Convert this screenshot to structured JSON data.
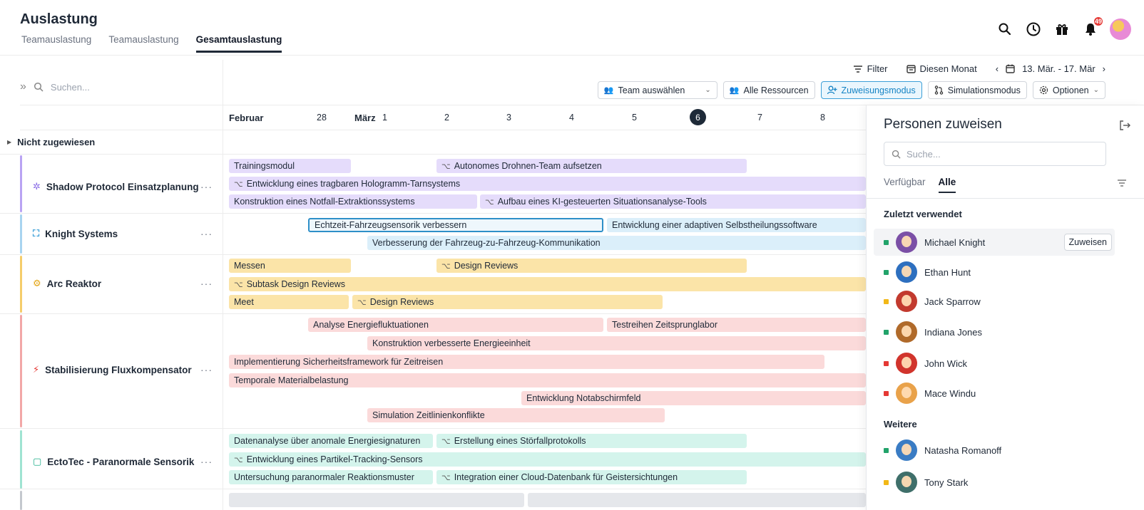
{
  "app": {
    "title": "Auslastung",
    "tabs": [
      {
        "label": "Teamauslastung",
        "active": false
      },
      {
        "label": "Teamauslastung",
        "active": false
      },
      {
        "label": "Gesamtauslastung",
        "active": true
      }
    ],
    "notification_count": "49"
  },
  "toolbar": {
    "filter_label": "Filter",
    "period_label": "Diesen Monat",
    "date_range": "13. Mär. - 17. Mär",
    "team_select": "Team auswählen",
    "resources_label": "Alle Ressourcen",
    "assign_mode_label": "Zuweisungsmodus",
    "simulation_label": "Simulationsmodus",
    "options_label": "Optionen"
  },
  "search": {
    "placeholder": "Suchen..."
  },
  "timeline": {
    "months": [
      "Februar",
      "März"
    ],
    "days": [
      "28",
      "1",
      "2",
      "3",
      "4",
      "5",
      "6",
      "7",
      "8"
    ],
    "today": "6"
  },
  "unassigned_label": "Nicht zugewiesen",
  "projects": [
    {
      "name": "Shadow Protocol Einsatzplanung",
      "color": "#b9a3f3",
      "tasks": [
        "Trainingsmodul",
        "Autonomes Drohnen-Team aufsetzen",
        "Entwicklung eines tragbaren Hologramm-Tarnsystems",
        "Konstruktion eines Notfall-Extraktionssystems",
        "Aufbau eines KI-gesteuerten Situationsanalyse-Tools"
      ]
    },
    {
      "name": "Knight Systems",
      "color": "#a8d4f0",
      "tasks": [
        "Echtzeit-Fahrzeugsensorik verbessern",
        "Entwicklung einer adaptiven Selbstheilungssoftware",
        "Verbesserung der Fahrzeug-zu-Fahrzeug-Kommunikation"
      ]
    },
    {
      "name": "Arc Reaktor",
      "color": "#f5cd6b",
      "tasks": [
        "Messen",
        "Design Reviews",
        "Subtask Design Reviews",
        "Meet",
        "Design Reviews"
      ]
    },
    {
      "name": "Stabilisierung Fluxkompensator",
      "color": "#f2a7a7",
      "tasks": [
        "Analyse Energiefluktuationen",
        "Testreihen Zeitsprunglabor",
        "Konstruktion verbesserte Energieeinheit",
        "Implementierung Sicherheitsframework für Zeitreisen",
        "Temporale Materialbelastung",
        "Entwicklung Notabschirmfeld",
        "Simulation Zeitlinienkonflikte"
      ]
    },
    {
      "name": "EctoTec - Paranormale Sensorik",
      "color": "#9fe3d2",
      "tasks": [
        "Datenanalyse über anomale Energiesignaturen",
        "Erstellung eines Störfallprotokolls",
        "Entwicklung eines Partikel-Tracking-Sensors",
        "Untersuchung paranormaler Reaktionsmuster",
        "Integration einer Cloud-Datenbank für Geistersichtungen"
      ]
    }
  ],
  "panel": {
    "title": "Personen zuweisen",
    "search_placeholder": "Suche...",
    "tabs": [
      {
        "label": "Verfügbar",
        "active": false
      },
      {
        "label": "Alle",
        "active": true
      }
    ],
    "recent_title": "Zuletzt verwendet",
    "more_title": "Weitere",
    "assign_label": "Zuweisen",
    "recent": [
      {
        "name": "Michael Knight",
        "status": "#22a36a"
      },
      {
        "name": "Ethan Hunt",
        "status": "#22a36a"
      },
      {
        "name": "Jack Sparrow",
        "status": "#f2b817"
      },
      {
        "name": "Indiana Jones",
        "status": "#22a36a"
      },
      {
        "name": "John Wick",
        "status": "#e53935"
      },
      {
        "name": "Mace Windu",
        "status": "#e53935"
      }
    ],
    "more": [
      {
        "name": "Natasha Romanoff",
        "status": "#22a36a"
      },
      {
        "name": "Tony Stark",
        "status": "#f2b817"
      }
    ]
  }
}
